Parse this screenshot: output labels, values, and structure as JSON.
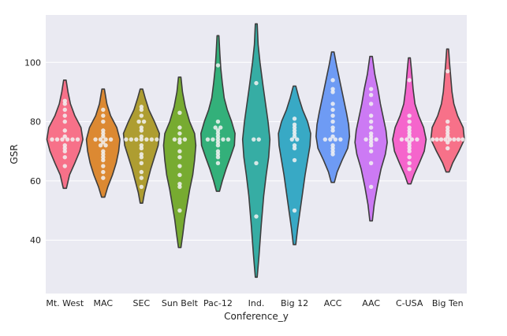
{
  "chart_data": {
    "type": "violin",
    "title": "",
    "xlabel": "Conference_y",
    "ylabel": "GSR",
    "ylim": [
      22,
      116
    ],
    "yticks": [
      40,
      60,
      80,
      100
    ],
    "grid": true,
    "background": "#EAEAF2",
    "violin_edge_color": "#3d3d3d",
    "swarm_point_color": "#f2f2f2",
    "categories": [
      "Mt. West",
      "MAC",
      "SEC",
      "Sun Belt",
      "Pac-12",
      "Ind.",
      "Big 12",
      "ACC",
      "AAC",
      "C-USA",
      "Big Ten"
    ],
    "series": [
      {
        "category": "Mt. West",
        "color": "#F77189",
        "range": [
          57.5,
          94
        ],
        "density": [
          [
            57.5,
            0.5
          ],
          [
            62,
            1.5
          ],
          [
            66,
            3.2
          ],
          [
            70,
            4.8
          ],
          [
            74,
            5.8
          ],
          [
            78,
            5.2
          ],
          [
            82,
            3.2
          ],
          [
            86,
            1.8
          ],
          [
            90,
            1
          ],
          [
            94,
            0.4
          ]
        ],
        "points": [
          65,
          68,
          70,
          71,
          72,
          74,
          74,
          74,
          74,
          74,
          74,
          75,
          77,
          80,
          82,
          84,
          86,
          87
        ]
      },
      {
        "category": "MAC",
        "color": "#DC8932",
        "range": [
          54.5,
          91
        ],
        "density": [
          [
            54.5,
            0.5
          ],
          [
            58,
            1.5
          ],
          [
            62,
            3
          ],
          [
            66,
            4.2
          ],
          [
            70,
            5
          ],
          [
            74,
            5.4
          ],
          [
            78,
            4.4
          ],
          [
            82,
            2.4
          ],
          [
            86,
            1.2
          ],
          [
            91,
            0.4
          ]
        ],
        "points": [
          61,
          63,
          65,
          67,
          68,
          69,
          70,
          72,
          72,
          73,
          74,
          74,
          74,
          74,
          75,
          76,
          77,
          80,
          82,
          84
        ]
      },
      {
        "category": "SEC",
        "color": "#AE9D31",
        "range": [
          52.5,
          91
        ],
        "density": [
          [
            52.5,
            0.4
          ],
          [
            56,
            1
          ],
          [
            60,
            2
          ],
          [
            64,
            3
          ],
          [
            68,
            4.2
          ],
          [
            72,
            5.4
          ],
          [
            76,
            5.8
          ],
          [
            80,
            4.2
          ],
          [
            84,
            2.4
          ],
          [
            88,
            1.2
          ],
          [
            91,
            0.4
          ]
        ],
        "points": [
          58,
          61,
          63,
          66,
          68,
          69,
          71,
          72,
          74,
          74,
          74,
          74,
          74,
          74,
          74,
          75,
          77,
          78,
          80,
          80,
          82,
          84,
          85
        ]
      },
      {
        "category": "Sun Belt",
        "color": "#77AB31",
        "range": [
          37.5,
          95
        ],
        "density": [
          [
            37.5,
            0.4
          ],
          [
            42,
            1
          ],
          [
            47,
            1.6
          ],
          [
            52,
            2.4
          ],
          [
            57,
            3.2
          ],
          [
            62,
            4.2
          ],
          [
            67,
            4.8
          ],
          [
            72,
            5.2
          ],
          [
            76,
            4.8
          ],
          [
            80,
            3.2
          ],
          [
            85,
            1.8
          ],
          [
            90,
            0.9
          ],
          [
            95,
            0.4
          ]
        ],
        "points": [
          50,
          58,
          59,
          62,
          65,
          68,
          70,
          73,
          74,
          74,
          74,
          76,
          78,
          83
        ]
      },
      {
        "category": "Pac-12",
        "color": "#33B07A",
        "range": [
          56.5,
          109
        ],
        "density": [
          [
            56.5,
            0.5
          ],
          [
            60,
            1.4
          ],
          [
            64,
            2.6
          ],
          [
            68,
            4
          ],
          [
            72,
            5.3
          ],
          [
            76,
            5.5
          ],
          [
            80,
            4.4
          ],
          [
            84,
            3
          ],
          [
            88,
            2
          ],
          [
            93,
            1.4
          ],
          [
            98,
            0.9
          ],
          [
            103,
            0.6
          ],
          [
            109,
            0.3
          ]
        ],
        "points": [
          66,
          68,
          69,
          70,
          72,
          73,
          74,
          74,
          74,
          74,
          74,
          75,
          76,
          77,
          78,
          78,
          80,
          99
        ]
      },
      {
        "category": "Ind.",
        "color": "#36ADA4",
        "range": [
          27.5,
          113
        ],
        "density": [
          [
            27.5,
            0.3
          ],
          [
            35,
            0.9
          ],
          [
            45,
            1.6
          ],
          [
            55,
            2.4
          ],
          [
            62,
            3.2
          ],
          [
            68,
            4
          ],
          [
            74,
            4.4
          ],
          [
            80,
            3.8
          ],
          [
            86,
            3
          ],
          [
            92,
            2.2
          ],
          [
            100,
            1.2
          ],
          [
            106,
            0.6
          ],
          [
            113,
            0.3
          ]
        ],
        "points": [
          48,
          66,
          74,
          74,
          93
        ]
      },
      {
        "category": "Big 12",
        "color": "#38A9C5",
        "range": [
          38.5,
          92
        ],
        "density": [
          [
            38.5,
            0.4
          ],
          [
            44,
            1
          ],
          [
            50,
            1.8
          ],
          [
            56,
            2.6
          ],
          [
            62,
            3.4
          ],
          [
            67,
            4.2
          ],
          [
            72,
            5
          ],
          [
            76,
            5.2
          ],
          [
            80,
            4.2
          ],
          [
            84,
            2.6
          ],
          [
            88,
            1.4
          ],
          [
            92,
            0.4
          ]
        ],
        "points": [
          50,
          67,
          71,
          72,
          74,
          74,
          75,
          76,
          77,
          78,
          79,
          81
        ]
      },
      {
        "category": "ACC",
        "color": "#6E9BF4",
        "range": [
          59.5,
          103.5
        ],
        "density": [
          [
            59.5,
            0.5
          ],
          [
            63,
            1.4
          ],
          [
            67,
            3
          ],
          [
            71,
            4.8
          ],
          [
            75,
            5.4
          ],
          [
            79,
            5.1
          ],
          [
            83,
            4.4
          ],
          [
            87,
            3.6
          ],
          [
            91,
            2.8
          ],
          [
            95,
            2
          ],
          [
            99,
            1.2
          ],
          [
            103.5,
            0.4
          ]
        ],
        "points": [
          69,
          70,
          71,
          72,
          74,
          74,
          74,
          74,
          75,
          77,
          78,
          80,
          82,
          84,
          86,
          90,
          91,
          94
        ]
      },
      {
        "category": "AAC",
        "color": "#CC7AF4",
        "range": [
          46.5,
          102
        ],
        "density": [
          [
            46.5,
            0.4
          ],
          [
            52,
            1
          ],
          [
            58,
            2
          ],
          [
            64,
            3.2
          ],
          [
            69,
            4.6
          ],
          [
            73,
            5.2
          ],
          [
            77,
            4.8
          ],
          [
            81,
            4
          ],
          [
            86,
            3
          ],
          [
            91,
            2.2
          ],
          [
            96,
            1.2
          ],
          [
            102,
            0.4
          ]
        ],
        "points": [
          58,
          66,
          70,
          72,
          73,
          74,
          74,
          74,
          75,
          76,
          78,
          80,
          82,
          86,
          89,
          91
        ]
      },
      {
        "category": "C-USA",
        "color": "#F565CC",
        "range": [
          59,
          101.5
        ],
        "density": [
          [
            59,
            0.5
          ],
          [
            62,
            1.5
          ],
          [
            66,
            3.2
          ],
          [
            70,
            4.8
          ],
          [
            74,
            5.4
          ],
          [
            78,
            4.6
          ],
          [
            82,
            3
          ],
          [
            86,
            1.8
          ],
          [
            91,
            1.2
          ],
          [
            96,
            0.8
          ],
          [
            101.5,
            0.3
          ]
        ],
        "points": [
          64,
          66,
          68,
          70,
          71,
          72,
          73,
          74,
          74,
          74,
          74,
          75,
          76,
          77,
          78,
          80,
          82,
          94
        ]
      },
      {
        "category": "Big Ten",
        "color": "#F77189",
        "range": [
          63,
          104.5
        ],
        "density": [
          [
            63,
            0.5
          ],
          [
            66,
            1.6
          ],
          [
            70,
            3.6
          ],
          [
            74,
            5.4
          ],
          [
            78,
            5
          ],
          [
            82,
            3.2
          ],
          [
            86,
            2
          ],
          [
            90,
            1.4
          ],
          [
            95,
            1
          ],
          [
            100,
            0.6
          ],
          [
            104.5,
            0.3
          ]
        ],
        "points": [
          71,
          73,
          74,
          74,
          74,
          74,
          74,
          74,
          74,
          74,
          75,
          76,
          77,
          78,
          80,
          97
        ]
      }
    ]
  }
}
